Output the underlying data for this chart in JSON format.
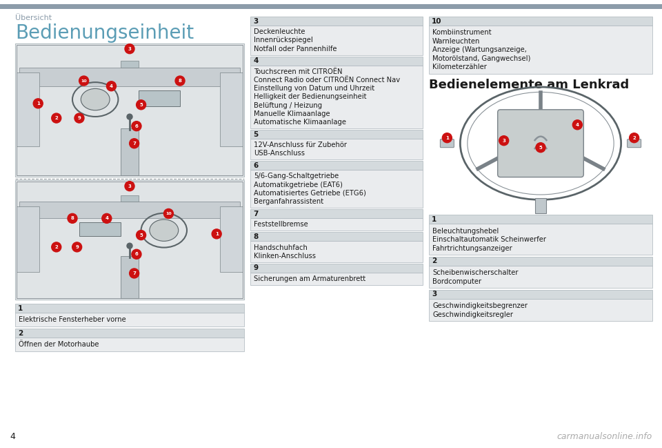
{
  "bg_color": "#ffffff",
  "header_bar_color": "#8c9caa",
  "page_number": "4",
  "section_title": "Übersicht",
  "section_title_color": "#8c9caa",
  "main_title": "Bedienungseinheit",
  "main_title_color": "#5b9db5",
  "right_title": "Bedienelemente am Lenkrad",
  "right_title_color": "#1a1a1a",
  "left_boxes": [
    {
      "num": "1",
      "lines": [
        "Elektrische Fensterheber vorne"
      ]
    },
    {
      "num": "2",
      "lines": [
        "Öffnen der Motorhaube"
      ]
    }
  ],
  "middle_boxes": [
    {
      "num": "3",
      "lines": [
        "Deckenleuchte",
        "Innenrückspiegel",
        "Notfall oder Pannenhilfe"
      ]
    },
    {
      "num": "4",
      "lines": [
        "Touchscreen mit CITROËN",
        "Connect Radio oder CITROËN Connect Nav",
        "Einstellung von Datum und Uhrzeit",
        "Helligkeit der Bedienungseinheit",
        "Belüftung / Heizung",
        "Manuelle Klimaanlage",
        "Automatische Klimaanlage"
      ]
    },
    {
      "num": "5",
      "lines": [
        "12V-Anschluss für Zubehör",
        "USB-Anschluss"
      ]
    },
    {
      "num": "6",
      "lines": [
        "5/6-Gang-Schaltgetriebe",
        "Automatikgetriebe (EAT6)",
        "Automatisiertes Getriebe (ETG6)",
        "Berganfahrassistent"
      ]
    },
    {
      "num": "7",
      "lines": [
        "Feststellbremse"
      ]
    },
    {
      "num": "8",
      "lines": [
        "Handschuhfach",
        "Klinken-Anschluss"
      ]
    },
    {
      "num": "9",
      "lines": [
        "Sicherungen am Armaturenbrett"
      ]
    }
  ],
  "right_top_box": {
    "num": "10",
    "lines": [
      "Kombiinstrument",
      "Warnleuchten",
      "Anzeige (Wartungsanzeige,",
      "Motorölstand, Gangwechsel)",
      "Kilometerzähler"
    ]
  },
  "right_bottom_boxes": [
    {
      "num": "1",
      "lines": [
        "Beleuchtungshebel",
        "Einschaltautomatik Scheinwerfer",
        "Fahrtrichtungsanzeiger"
      ]
    },
    {
      "num": "2",
      "lines": [
        "Scheibenwischerschalter",
        "Bordcomputer"
      ]
    },
    {
      "num": "3",
      "lines": [
        "Geschwindigkeitsbegrenzer",
        "Geschwindigkeitsregler"
      ]
    }
  ],
  "box_header_bg": "#d4dadd",
  "box_body_bg": "#eaecee",
  "box_border": "#aab4ba",
  "text_color": "#1a1a1a",
  "num_color": "#1a1a1a",
  "red_circle_color": "#cc1111",
  "watermark": "carmanualsonline.info",
  "watermark_color": "#aaaaaa"
}
